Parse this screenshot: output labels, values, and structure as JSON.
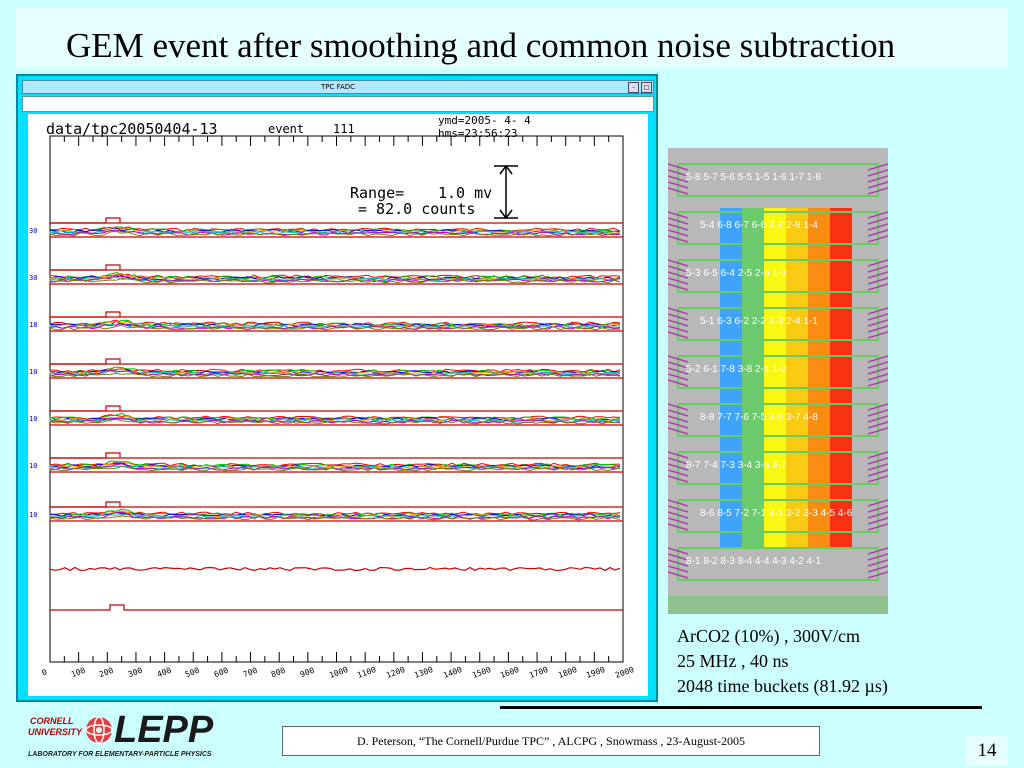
{
  "slide": {
    "title": "GEM event after smoothing and common noise subtraction",
    "page_number": "14"
  },
  "window": {
    "title": "TPC FADC",
    "buttons": [
      "-",
      "□"
    ]
  },
  "plot": {
    "file_label": "data/tpc20050404-13",
    "event_label": "event",
    "event_number": "111",
    "date_label": "ymd=2005- 4- 4",
    "time_label": "hms=23:56:23",
    "range_line1_a": "Range=",
    "range_line1_b": "1.0 mv",
    "range_line2": "=   82.0 counts",
    "x_ticks": [
      "0",
      "100",
      "200",
      "300",
      "400",
      "500",
      "600",
      "700",
      "800",
      "900",
      "1000",
      "1100",
      "1200",
      "1300",
      "1400",
      "1500",
      "1600",
      "1700",
      "1800",
      "1900",
      "2000"
    ],
    "channel_labels": [
      "30",
      "30",
      "18",
      "10",
      "10",
      "10",
      "10"
    ],
    "trace_colors": [
      "#ff0000",
      "#00c000",
      "#0000ff",
      "#ffa000",
      "#00c0c0",
      "#c000c0",
      "#808000"
    ]
  },
  "pad_map": {
    "rows": [
      "5-8 5-7 5-6 5-5 1-5 1-6 1-7 1-8",
      "5-4 6-8 6-7 6-6 2-7 2-8 1-4",
      "5-3 6-5 6-4 2-5 2-6 1-3",
      "5-1 6-3 6-2 2-2 2-3 2-4 1-1",
      "5-2 6-1 7-8 3-8 2-1 1-2",
      "8-8 7-7 7-6 7-5 3-6 3-7 4-8",
      "8-7 7-4 7-3 3-4 3-5 4-7",
      "8-6 8-5 7-2 7-1 3-1 3-2 3-3 4-5 4-6",
      "8-1 8-2 8-3 8-4 4-4 4-3 4-2 4-1"
    ],
    "column_colors": [
      "#3399ff",
      "#66ccee",
      "#66cc66",
      "#ffff00",
      "#ffcc00",
      "#ff8800",
      "#ff2200"
    ]
  },
  "info": {
    "line1": "ArCO2 (10%) , 300V/cm",
    "line2": "25 MHz , 40 ns",
    "line3": "2048 time buckets  (81.92 µs)"
  },
  "footer": {
    "text": "D. Peterson,  “The Cornell/Purdue TPC” ,  ALCPG , Snowmass , 23-August-2005"
  },
  "logo": {
    "cornell1": "CORNELL",
    "cornell2": "UNIVERSITY",
    "lepp": "LEPP",
    "subtitle": "LABORATORY FOR ELEMENTARY-PARTICLE PHYSICS"
  }
}
